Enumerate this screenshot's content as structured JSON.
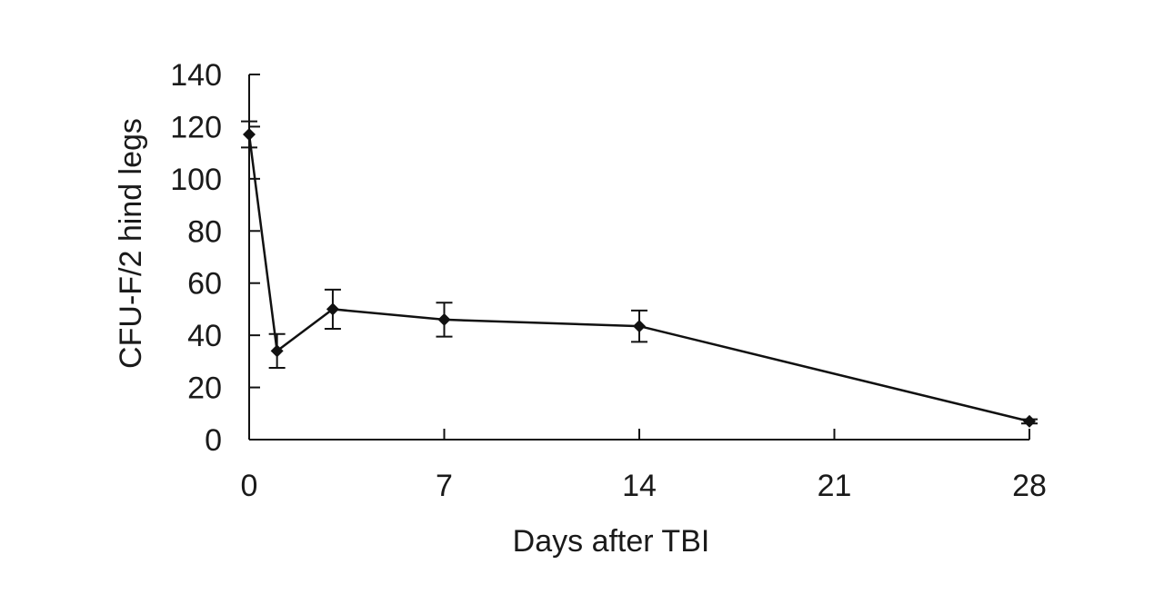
{
  "chart_data": {
    "type": "line",
    "title": "",
    "xlabel": "Days after TBI",
    "ylabel": "CFU-F/2 hind legs",
    "xlim": [
      0,
      28
    ],
    "ylim": [
      0,
      140
    ],
    "xticks": [
      0,
      7,
      14,
      21,
      28
    ],
    "yticks": [
      0,
      20,
      40,
      60,
      80,
      100,
      120,
      140
    ],
    "grid": false,
    "legend": "none",
    "series": [
      {
        "x": [
          0,
          1,
          3,
          7,
          14,
          28
        ],
        "y": [
          117,
          34,
          50,
          46,
          43.5,
          7
        ],
        "error": [
          5,
          6.5,
          7.5,
          6.5,
          6,
          0.8
        ],
        "marker": "diamond",
        "color": "#111111"
      }
    ]
  }
}
